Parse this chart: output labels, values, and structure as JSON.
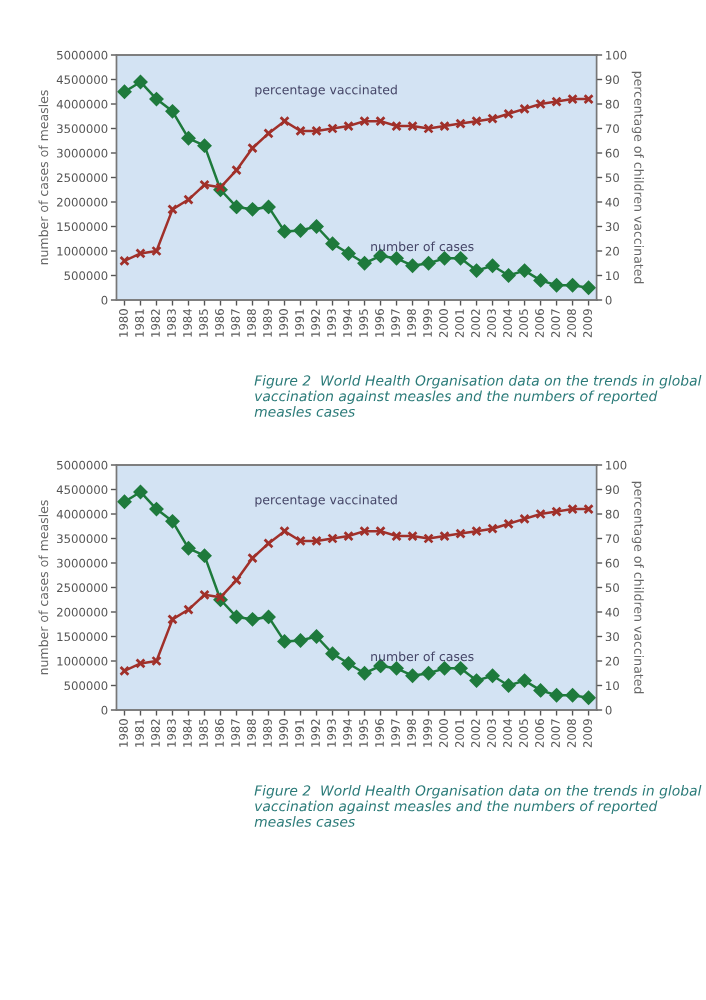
{
  "chart_data": [
    {
      "type": "line",
      "categories": [
        "1980",
        "1981",
        "1982",
        "1983",
        "1984",
        "1985",
        "1986",
        "1987",
        "1988",
        "1989",
        "1990",
        "1991",
        "1992",
        "1993",
        "1994",
        "1995",
        "1996",
        "1997",
        "1998",
        "1999",
        "2000",
        "2001",
        "2002",
        "2003",
        "2004",
        "2005",
        "2006",
        "2007",
        "2008",
        "2009"
      ],
      "series": [
        {
          "name": "number of cases",
          "color": "#1e7a3c",
          "marker": "diamond",
          "values": [
            4250000,
            4450000,
            4100000,
            3850000,
            3300000,
            3150000,
            2250000,
            1900000,
            1850000,
            1900000,
            1400000,
            1420000,
            1500000,
            1150000,
            950000,
            750000,
            900000,
            850000,
            700000,
            750000,
            850000,
            850000,
            600000,
            700000,
            500000,
            600000,
            400000,
            300000,
            300000,
            250000
          ]
        },
        {
          "name": "percentage vaccinated",
          "color": "#a0302a",
          "marker": "cross",
          "axis": "y2",
          "values": [
            16,
            19,
            20,
            37,
            41,
            47,
            46,
            53,
            62,
            68,
            73,
            69,
            69,
            70,
            71,
            73,
            73,
            71,
            71,
            70,
            71,
            72,
            73,
            74,
            76,
            78,
            80,
            81,
            82,
            82
          ]
        }
      ],
      "ylabel": "number of cases of measles",
      "y2label": "percentage of children vaccinated",
      "ylim": [
        0,
        5000000
      ],
      "yticks": [
        0,
        500000,
        1000000,
        1500000,
        2000000,
        2500000,
        3000000,
        3500000,
        4000000,
        4500000,
        5000000
      ],
      "y2lim": [
        0,
        100
      ],
      "y2ticks": [
        0,
        10,
        20,
        30,
        40,
        50,
        60,
        70,
        80,
        90,
        100
      ],
      "grid": false,
      "legend": false,
      "annotations": [
        "Figure 2  World Health Organisation data on the trends in global vaccination against measles and the numbers of reported measles cases"
      ]
    },
    {
      "type": "line",
      "categories": [
        "1980",
        "1981",
        "1982",
        "1983",
        "1984",
        "1985",
        "1986",
        "1987",
        "1988",
        "1989",
        "1990",
        "1991",
        "1992",
        "1993",
        "1994",
        "1995",
        "1996",
        "1997",
        "1998",
        "1999",
        "2000",
        "2001",
        "2002",
        "2003",
        "2004",
        "2005",
        "2006",
        "2007",
        "2008",
        "2009"
      ],
      "series": [
        {
          "name": "number of cases",
          "color": "#1e7a3c",
          "marker": "diamond",
          "values": [
            4250000,
            4450000,
            4100000,
            3850000,
            3300000,
            3150000,
            2250000,
            1900000,
            1850000,
            1900000,
            1400000,
            1420000,
            1500000,
            1150000,
            950000,
            750000,
            900000,
            850000,
            700000,
            750000,
            850000,
            850000,
            600000,
            700000,
            500000,
            600000,
            400000,
            300000,
            300000,
            250000
          ]
        },
        {
          "name": "percentage vaccinated",
          "color": "#a0302a",
          "marker": "cross",
          "axis": "y2",
          "values": [
            16,
            19,
            20,
            37,
            41,
            47,
            46,
            53,
            62,
            68,
            73,
            69,
            69,
            70,
            71,
            73,
            73,
            71,
            71,
            70,
            71,
            72,
            73,
            74,
            76,
            78,
            80,
            81,
            82,
            82
          ]
        }
      ],
      "ylabel": "number of cases of measles",
      "y2label": "percentage of children vaccinated",
      "ylim": [
        0,
        5000000
      ],
      "yticks": [
        0,
        500000,
        1000000,
        1500000,
        2000000,
        2500000,
        3000000,
        3500000,
        4000000,
        4500000,
        5000000
      ],
      "y2lim": [
        0,
        100
      ],
      "y2ticks": [
        0,
        10,
        20,
        30,
        40,
        50,
        60,
        70,
        80,
        90,
        100
      ],
      "grid": false,
      "legend": false,
      "annotations": [
        "Figure 2  World Health Organisation data on the trends in global vaccination against measles and the numbers of reported measles cases"
      ]
    }
  ]
}
